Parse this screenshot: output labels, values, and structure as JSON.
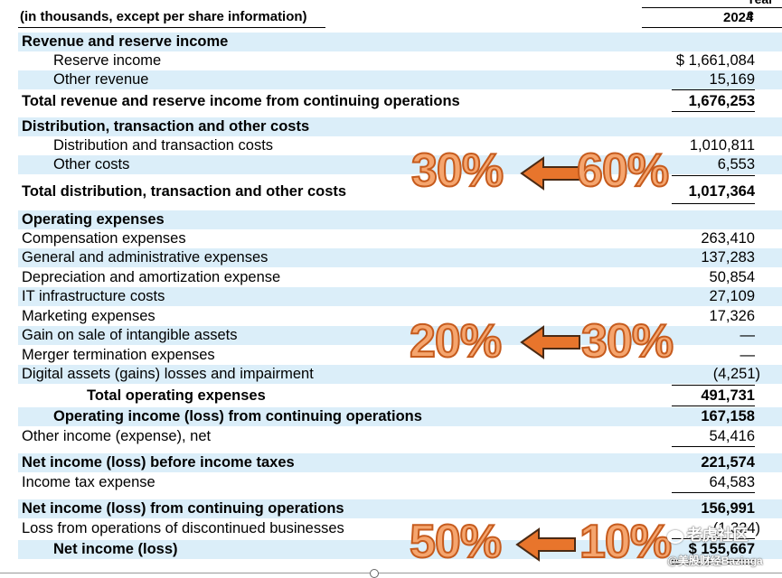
{
  "header": {
    "units_label": "(in thousands, except per share information)",
    "year_label_partial": "Year e",
    "year": "2024"
  },
  "rows": {
    "revenue_heading": {
      "label": "Revenue and reserve income"
    },
    "reserve_income": {
      "label": "Reserve income",
      "value": "$ 1,661,084"
    },
    "other_revenue": {
      "label": "Other revenue",
      "value": "15,169"
    },
    "total_revenue": {
      "label": "Total revenue and reserve income from continuing operations",
      "value": "1,676,253"
    },
    "dist_heading": {
      "label": "Distribution, transaction and other costs"
    },
    "dist_costs": {
      "label": "Distribution and transaction costs",
      "value": "1,010,811"
    },
    "other_costs": {
      "label": "Other costs",
      "value": "6,553"
    },
    "total_dist": {
      "label": "Total distribution, transaction and other costs",
      "value": "1,017,364"
    },
    "opex_heading": {
      "label": "Operating expenses"
    },
    "compensation": {
      "label": "Compensation expenses",
      "value": "263,410"
    },
    "g_and_a": {
      "label": "General and administrative expenses",
      "value": "137,283"
    },
    "depreciation": {
      "label": "Depreciation and amortization expense",
      "value": "50,854"
    },
    "it_infra": {
      "label": "IT infrastructure costs",
      "value": "27,109"
    },
    "marketing": {
      "label": "Marketing expenses",
      "value": "17,326"
    },
    "gain_intangible": {
      "label": "Gain on sale of intangible assets",
      "value": "—"
    },
    "merger_termination": {
      "label": "Merger termination expenses",
      "value": "—"
    },
    "digital_assets": {
      "label": "Digital assets (gains) losses and impairment",
      "value": "(4,251)"
    },
    "total_opex": {
      "label": "Total operating expenses",
      "value": "491,731"
    },
    "operating_income": {
      "label": "Operating income (loss) from continuing operations",
      "value": "167,158"
    },
    "other_income": {
      "label": "Other income (expense), net",
      "value": "54,416"
    },
    "pretax_income": {
      "label": "Net income (loss) before income taxes",
      "value": "221,574"
    },
    "income_tax": {
      "label": "Income tax expense",
      "value": "64,583"
    },
    "net_income_cont": {
      "label": "Net income (loss) from continuing operations",
      "value": "156,991"
    },
    "loss_discontinued": {
      "label": "Loss from operations of discontinued businesses",
      "value": "(1,324)"
    },
    "net_income": {
      "label": "Net income (loss)",
      "value": "$ 155,667"
    }
  },
  "annotations": {
    "a1_left": "30%",
    "a1_right": "60%",
    "a2_left": "20%",
    "a2_right": "30%",
    "a3_left": "50%",
    "a3_right": "10%"
  },
  "watermark": {
    "line1": "老虎社区",
    "line2": "@美股财经Bazinga"
  },
  "colors": {
    "row_shade": "#dbeef9",
    "annotation_fill": "#f5a56e",
    "annotation_stroke": "#c65b1d",
    "arrow_fill": "#e8752c"
  }
}
